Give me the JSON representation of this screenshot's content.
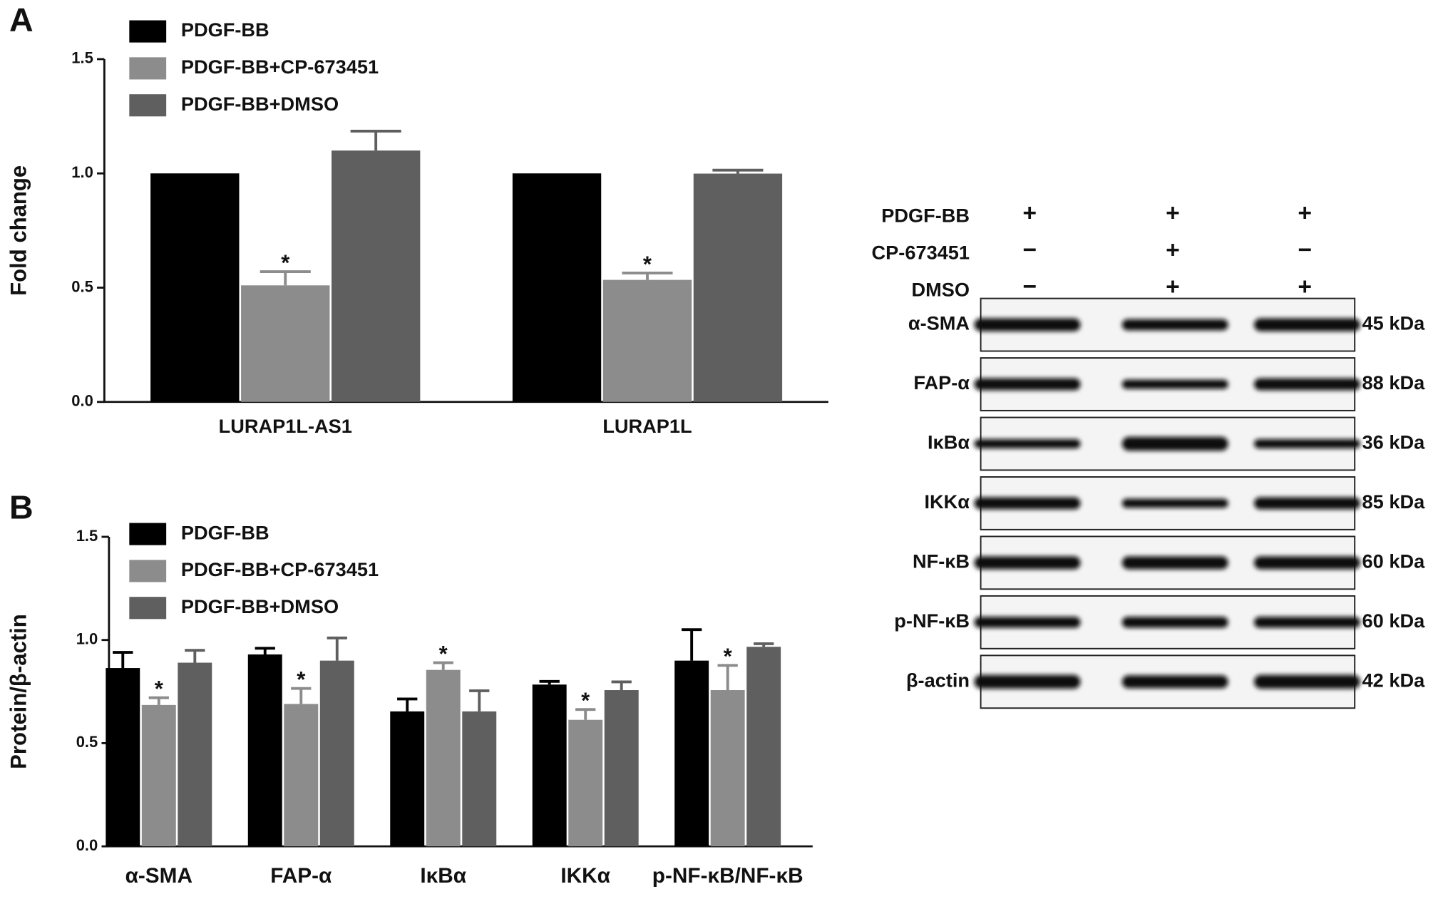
{
  "chart_data": [
    {
      "type": "bar",
      "panel": "A",
      "ylabel": "Fold change",
      "categories": [
        "LURAP1L-AS1",
        "LURAP1L"
      ],
      "series": [
        {
          "name": "PDGF-BB",
          "color": "#000000",
          "values": [
            1.0,
            1.0
          ],
          "errors": [
            null,
            null
          ]
        },
        {
          "name": "PDGF-BB+CP-673451",
          "color": "#8c8c8c",
          "values": [
            0.51,
            0.534
          ],
          "errors": [
            0.06,
            0.03
          ]
        },
        {
          "name": "PDGF-BB+DMSO",
          "color": "#5f5f5f",
          "values": [
            1.1,
            0.999
          ],
          "errors": [
            0.085,
            0.015
          ]
        }
      ],
      "ylim": [
        0,
        1.5
      ],
      "yticks": [
        {
          "value": 0,
          "label": "0.0"
        },
        0.5,
        {
          "value": 1,
          "label": "1.0"
        },
        1.5
      ],
      "annotations": [
        {
          "series": 1,
          "category": 0,
          "text": "*"
        },
        {
          "series": 1,
          "category": 1,
          "text": "*"
        }
      ]
    },
    {
      "type": "bar",
      "panel": "B",
      "ylabel": "Protein/β-actin",
      "categories": [
        "α-SMA",
        "FAP-α",
        "IκBα",
        "IKKα",
        "p-NF-κB/NF-κB"
      ],
      "series": [
        {
          "name": "PDGF-BB",
          "color": "#000000",
          "values": [
            0.864,
            0.93,
            0.654,
            0.784,
            0.9
          ],
          "errors": [
            0.076,
            0.03,
            0.06,
            0.015,
            0.15
          ]
        },
        {
          "name": "PDGF-BB+CP-673451",
          "color": "#8c8c8c",
          "values": [
            0.685,
            0.69,
            0.855,
            0.613,
            0.757
          ],
          "errors": [
            0.035,
            0.075,
            0.035,
            0.05,
            0.12
          ]
        },
        {
          "name": "PDGF-BB+DMSO",
          "color": "#5f5f5f",
          "values": [
            0.89,
            0.9,
            0.654,
            0.757,
            0.967
          ],
          "errors": [
            0.06,
            0.11,
            0.1,
            0.04,
            0.015
          ]
        }
      ],
      "ylim": [
        0,
        1.5
      ],
      "yticks": [
        {
          "value": 0,
          "label": "0.0"
        },
        0.5,
        {
          "value": 1,
          "label": "1.0"
        },
        1.5
      ],
      "annotations": [
        {
          "series": 1,
          "category": 0,
          "text": "*"
        },
        {
          "series": 1,
          "category": 1,
          "text": "*"
        },
        {
          "series": 1,
          "category": 2,
          "text": "*"
        },
        {
          "series": 1,
          "category": 3,
          "text": "*"
        },
        {
          "series": 1,
          "category": 4,
          "text": "*"
        }
      ]
    }
  ],
  "blot": {
    "treatments": [
      {
        "label": "PDGF-BB",
        "signs": [
          "+",
          "+",
          "+"
        ]
      },
      {
        "label": "CP-673451",
        "signs": [
          "−",
          "+",
          "−"
        ]
      },
      {
        "label": "DMSO",
        "signs": [
          "−",
          "+",
          "+"
        ]
      }
    ],
    "bands": [
      {
        "label": "α-SMA",
        "size": "45 kDa"
      },
      {
        "label": "FAP-α",
        "size": "88 kDa"
      },
      {
        "label": "IκBα",
        "size": "36 kDa"
      },
      {
        "label": "IKKα",
        "size": "85 kDa"
      },
      {
        "label": "NF-κB",
        "size": "60 kDa"
      },
      {
        "label": "p-NF-κB",
        "size": "60 kDa"
      },
      {
        "label": "β-actin",
        "size": "42 kDa"
      }
    ]
  }
}
